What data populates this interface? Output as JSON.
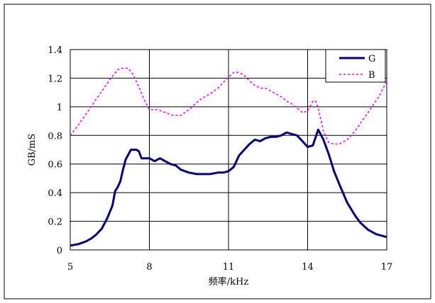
{
  "chart_data": {
    "type": "line",
    "xlabel": "频率/kHz",
    "ylabel": "GB/mS",
    "xlim": [
      5,
      17
    ],
    "ylim": [
      0,
      1.4
    ],
    "x_ticks": [
      "5",
      "8",
      "11",
      "14",
      "17"
    ],
    "y_ticks": [
      "0",
      "0.2",
      "0.4",
      "0.6",
      "0.8",
      "1",
      "1.2",
      "1.4"
    ],
    "grid": true,
    "legend_position": "top-right",
    "series": [
      {
        "name": "G",
        "color": "#000080",
        "style": "solid",
        "x": [
          5.0,
          5.3,
          5.6,
          5.8,
          6.0,
          6.2,
          6.4,
          6.6,
          6.7,
          6.8,
          6.9,
          7.0,
          7.1,
          7.3,
          7.5,
          7.6,
          7.7,
          7.9,
          8.0,
          8.2,
          8.4,
          8.6,
          8.8,
          9.0,
          9.2,
          9.5,
          9.8,
          10.0,
          10.3,
          10.6,
          10.8,
          11.0,
          11.2,
          11.4,
          11.6,
          11.8,
          12.0,
          12.2,
          12.4,
          12.6,
          12.8,
          13.0,
          13.2,
          13.4,
          13.6,
          13.8,
          14.0,
          14.2,
          14.4,
          14.6,
          14.8,
          15.0,
          15.2,
          15.5,
          15.8,
          16.0,
          16.3,
          16.6,
          16.8,
          17.0
        ],
        "y": [
          0.03,
          0.04,
          0.06,
          0.08,
          0.11,
          0.15,
          0.22,
          0.31,
          0.41,
          0.44,
          0.48,
          0.56,
          0.63,
          0.7,
          0.7,
          0.69,
          0.64,
          0.64,
          0.64,
          0.62,
          0.64,
          0.62,
          0.6,
          0.59,
          0.56,
          0.54,
          0.53,
          0.53,
          0.53,
          0.54,
          0.54,
          0.55,
          0.58,
          0.66,
          0.7,
          0.74,
          0.77,
          0.76,
          0.78,
          0.79,
          0.79,
          0.8,
          0.82,
          0.81,
          0.8,
          0.76,
          0.72,
          0.73,
          0.84,
          0.77,
          0.67,
          0.55,
          0.46,
          0.33,
          0.24,
          0.19,
          0.14,
          0.11,
          0.1,
          0.09
        ]
      },
      {
        "name": "B",
        "color": "#ff00ff",
        "style": "dashed",
        "x": [
          5.0,
          5.3,
          5.6,
          5.9,
          6.2,
          6.5,
          6.8,
          7.0,
          7.2,
          7.4,
          7.6,
          7.8,
          8.0,
          8.3,
          8.6,
          8.9,
          9.2,
          9.5,
          9.8,
          10.0,
          10.3,
          10.6,
          10.9,
          11.2,
          11.4,
          11.6,
          11.8,
          12.0,
          12.2,
          12.4,
          12.6,
          12.8,
          13.0,
          13.2,
          13.4,
          13.6,
          13.8,
          14.0,
          14.2,
          14.3,
          14.4,
          14.6,
          14.8,
          15.0,
          15.2,
          15.5,
          15.8,
          16.1,
          16.4,
          16.7,
          17.0
        ],
        "y": [
          0.8,
          0.87,
          0.95,
          1.03,
          1.11,
          1.19,
          1.26,
          1.27,
          1.27,
          1.22,
          1.14,
          1.05,
          0.98,
          0.98,
          0.96,
          0.94,
          0.94,
          0.98,
          1.03,
          1.06,
          1.09,
          1.13,
          1.19,
          1.24,
          1.24,
          1.22,
          1.18,
          1.15,
          1.13,
          1.13,
          1.11,
          1.09,
          1.07,
          1.04,
          1.02,
          0.99,
          0.96,
          0.97,
          1.04,
          1.04,
          0.99,
          0.83,
          0.75,
          0.74,
          0.74,
          0.77,
          0.83,
          0.91,
          0.99,
          1.07,
          1.18
        ]
      }
    ]
  }
}
